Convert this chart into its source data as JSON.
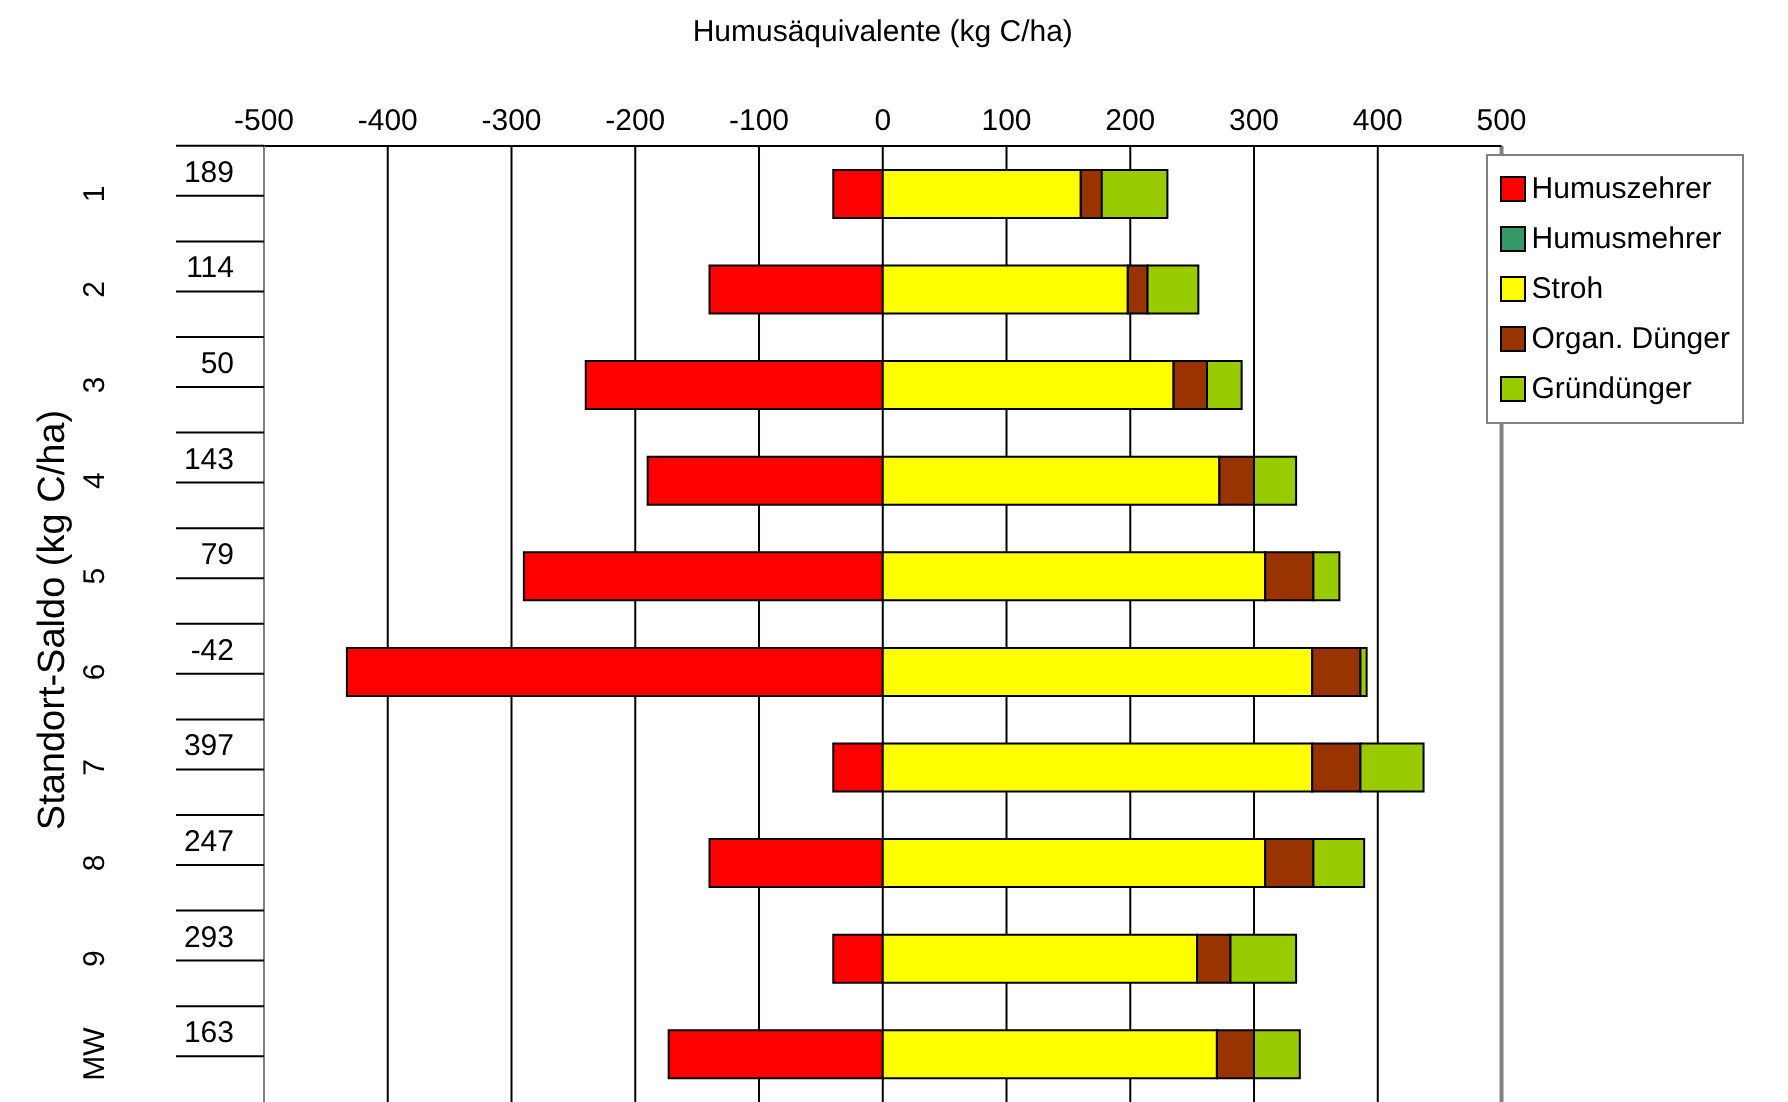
{
  "chart_data": {
    "type": "bar",
    "orientation": "horizontal",
    "stacked": true,
    "xlabel": "Humusäquivalente (kg C/ha)",
    "ylabel": "Standort-Saldo (kg C/ha)",
    "categories": [
      "1",
      "2",
      "3",
      "4",
      "5",
      "6",
      "7",
      "8",
      "9",
      "MW"
    ],
    "series": [
      {
        "name": "Humuszehrer",
        "color": "#ff0000",
        "values": [
          -40,
          -140,
          -240,
          -190,
          -290,
          -433,
          -40,
          -140,
          -40,
          -173
        ]
      },
      {
        "name": "Humusmehrer",
        "color": "#339966",
        "values": [
          null,
          null,
          null,
          null,
          null,
          null,
          null,
          null,
          null,
          null
        ]
      },
      {
        "name": "Stroh",
        "color": "#ffff00",
        "values": [
          160,
          198,
          235,
          272,
          309,
          347,
          347,
          309,
          254,
          270
        ]
      },
      {
        "name": "Organ. Dünger",
        "color": "#993300",
        "values": [
          17,
          16,
          27,
          28,
          39,
          39,
          39,
          39,
          27,
          30
        ]
      },
      {
        "name": "Gründünger",
        "color": "#99cc00",
        "values": [
          53,
          41,
          28,
          34,
          21,
          5,
          51,
          41,
          53,
          37
        ]
      }
    ],
    "xlim": [
      -500,
      500
    ],
    "xticks": [
      -500,
      -400,
      -300,
      -200,
      -100,
      0,
      100,
      200,
      300,
      400,
      500
    ],
    "grid": "x",
    "legend": "top right",
    "annotations": [
      "189",
      "114",
      "50",
      "143",
      "79",
      "-42",
      "397",
      "247",
      "293",
      "163"
    ]
  }
}
